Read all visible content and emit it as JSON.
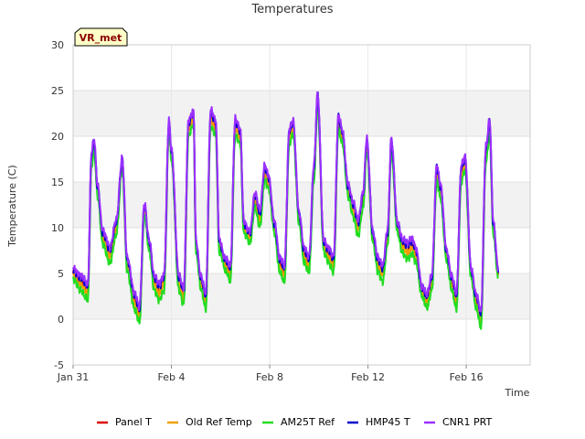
{
  "chart_data": {
    "type": "line",
    "title": "Temperatures",
    "xlabel": "Time",
    "ylabel": "Temperature (C)",
    "ylim": [
      -5,
      30
    ],
    "yticks": [
      -5,
      0,
      5,
      10,
      15,
      20,
      25,
      30
    ],
    "xlim": [
      0,
      18.6
    ],
    "xticks": [
      {
        "value": 0,
        "label": "Jan 31"
      },
      {
        "value": 4,
        "label": "Feb 4"
      },
      {
        "value": 8,
        "label": "Feb 8"
      },
      {
        "value": 12,
        "label": "Feb 12"
      },
      {
        "value": 16,
        "label": "Feb 16"
      }
    ],
    "site_label": "VR_met",
    "grid": "horizontal bands",
    "legend_position": "bottom",
    "series": [
      {
        "name": "Panel T",
        "color": "#dd0000",
        "offset": 0.0
      },
      {
        "name": "Old Ref Temp",
        "color": "#f0a000",
        "offset": -0.2
      },
      {
        "name": "AM25T Ref",
        "color": "#22dd22",
        "offset": -0.9
      },
      {
        "name": "HMP45 T",
        "color": "#0000cc",
        "offset": 0.6
      },
      {
        "name": "CNR1 PRT",
        "color": "#9b30ff",
        "offset": 0.9
      }
    ],
    "base_curve": {
      "x": [
        0.0,
        0.3,
        0.6,
        0.75,
        0.85,
        1.0,
        1.2,
        1.5,
        1.75,
        2.0,
        2.2,
        2.5,
        2.7,
        2.9,
        3.1,
        3.3,
        3.5,
        3.7,
        3.9,
        4.0,
        4.3,
        4.5,
        4.7,
        4.9,
        5.0,
        5.2,
        5.4,
        5.6,
        5.8,
        5.95,
        6.2,
        6.4,
        6.6,
        6.8,
        6.95,
        7.2,
        7.4,
        7.6,
        7.8,
        7.95,
        8.2,
        8.4,
        8.6,
        8.8,
        8.95,
        9.2,
        9.4,
        9.6,
        9.8,
        9.95,
        10.2,
        10.4,
        10.6,
        10.8,
        10.95,
        11.2,
        11.4,
        11.6,
        11.8,
        11.95,
        12.2,
        12.4,
        12.6,
        12.8,
        12.95,
        13.2,
        13.4,
        13.6,
        13.8,
        13.95,
        14.2,
        14.4,
        14.6,
        14.8,
        14.95,
        15.2,
        15.4,
        15.6,
        15.8,
        15.95,
        16.2,
        16.4,
        16.6,
        16.8,
        16.95,
        17.1,
        17.3
      ],
      "y": [
        5.0,
        4.0,
        3.0,
        17.5,
        19.0,
        14.0,
        9.0,
        7.0,
        10.0,
        17.0,
        6.0,
        2.0,
        0.5,
        12.0,
        8.0,
        4.0,
        3.0,
        4.0,
        21.0,
        18.0,
        4.0,
        2.5,
        21.0,
        22.0,
        8.0,
        4.0,
        2.0,
        22.0,
        21.0,
        8.0,
        6.0,
        5.0,
        21.0,
        20.0,
        10.0,
        9.0,
        13.0,
        11.0,
        16.0,
        15.0,
        10.0,
        6.0,
        5.0,
        20.0,
        21.0,
        11.0,
        7.0,
        6.0,
        16.0,
        24.0,
        8.0,
        7.0,
        6.0,
        21.5,
        20.0,
        14.0,
        12.0,
        10.0,
        13.0,
        19.0,
        9.0,
        6.0,
        5.0,
        9.0,
        19.0,
        10.0,
        8.0,
        7.5,
        8.0,
        7.0,
        3.0,
        2.0,
        4.0,
        16.0,
        14.0,
        7.0,
        4.0,
        2.0,
        16.0,
        17.0,
        5.0,
        2.0,
        0.0,
        18.0,
        21.0,
        10.0,
        5.0
      ]
    }
  }
}
